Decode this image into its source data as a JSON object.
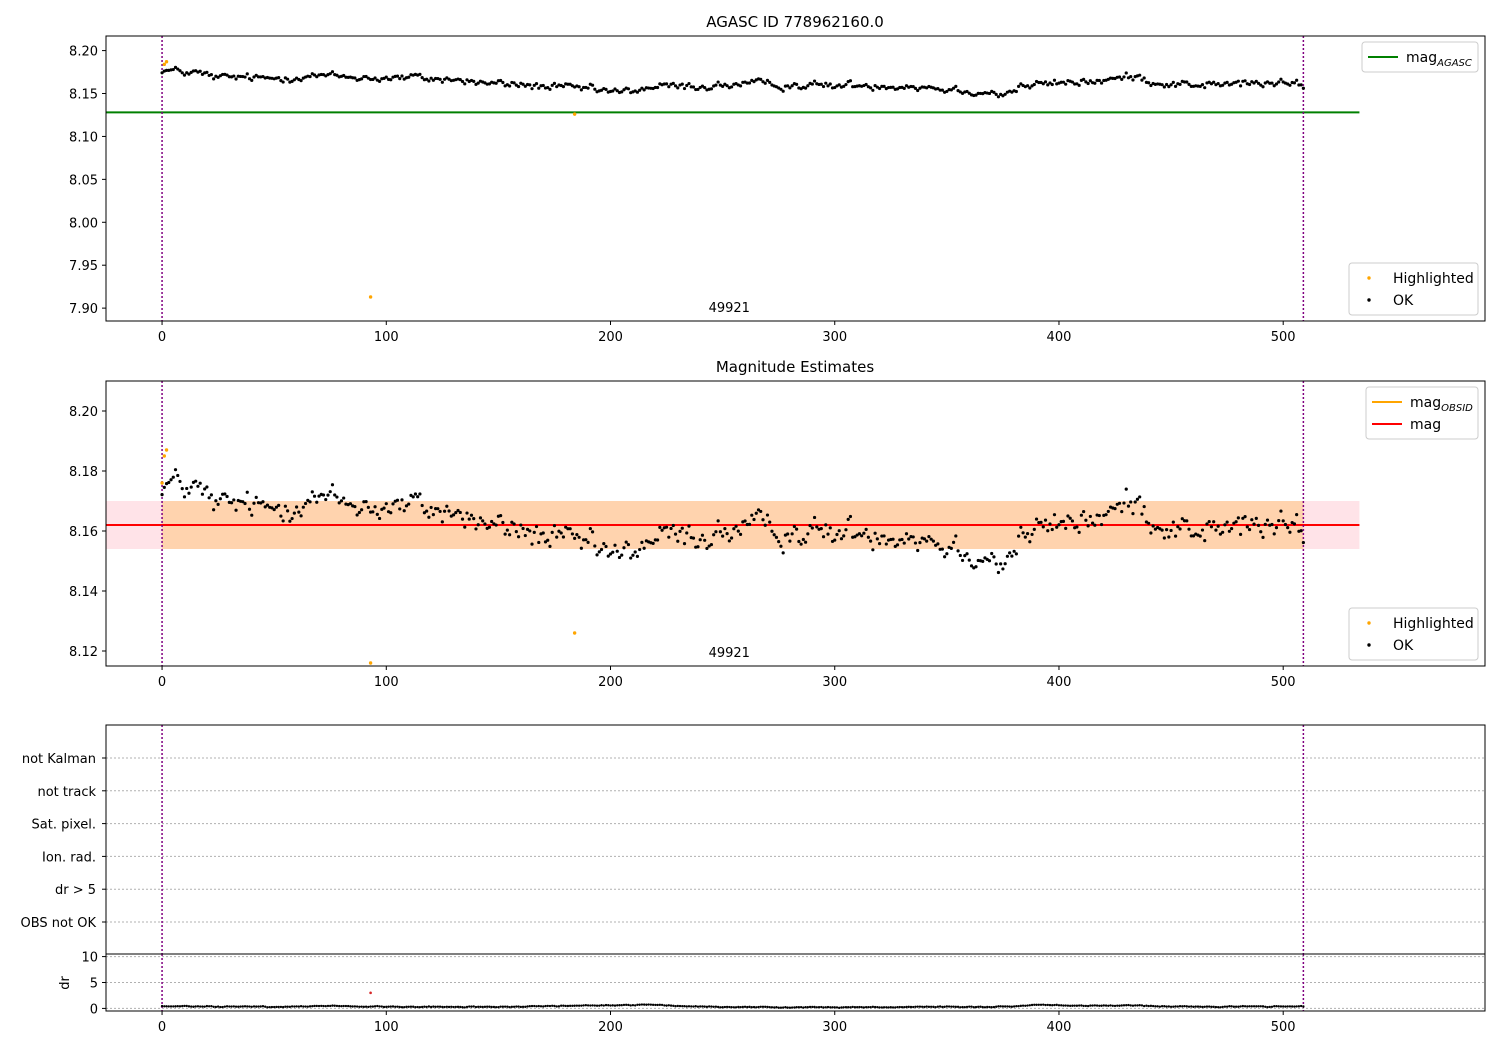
{
  "chart_data": [
    {
      "type": "scatter",
      "title": "AGASC ID 778962160.0",
      "xlim": [
        -25,
        590
      ],
      "ylim": [
        7.885,
        8.217
      ],
      "x_ticks": [
        0,
        100,
        200,
        300,
        400,
        500
      ],
      "y_ticks": [
        7.9,
        7.95,
        8.0,
        8.05,
        8.1,
        8.15,
        8.2
      ],
      "y_tick_labels": [
        "7.90",
        "7.95",
        "8.00",
        "8.05",
        "8.10",
        "8.15",
        "8.20"
      ],
      "obsid_annotation": {
        "x": 254,
        "text": "49921"
      },
      "vlines": [
        0,
        509
      ],
      "vline_color": "#800080",
      "lines": [
        {
          "name": "mag_AGASC",
          "label_main": "mag",
          "label_sub": "AGASC",
          "y": 8.128,
          "x_range": [
            -25,
            534
          ],
          "color": "#008000"
        }
      ],
      "series": [
        {
          "name": "Highlighted",
          "color": "#FFA500",
          "points": [
            [
              1,
              8.184
            ],
            [
              2,
              8.187
            ],
            [
              93,
              7.913
            ],
            [
              184,
              8.126
            ]
          ]
        },
        {
          "name": "OK",
          "color": "#000000",
          "trend": [
            [
              0,
              8.178
            ],
            [
              5,
              8.176
            ],
            [
              15,
              8.174
            ],
            [
              25,
              8.168
            ],
            [
              35,
              8.169
            ],
            [
              45,
              8.167
            ],
            [
              55,
              8.169
            ],
            [
              65,
              8.171
            ],
            [
              75,
              8.17
            ],
            [
              85,
              8.169
            ],
            [
              100,
              8.168
            ],
            [
              115,
              8.168
            ],
            [
              130,
              8.166
            ],
            [
              145,
              8.162
            ],
            [
              160,
              8.16
            ],
            [
              175,
              8.157
            ],
            [
              190,
              8.155
            ],
            [
              205,
              8.151
            ],
            [
              220,
              8.158
            ],
            [
              240,
              8.158
            ],
            [
              260,
              8.161
            ],
            [
              280,
              8.16
            ],
            [
              300,
              8.159
            ],
            [
              320,
              8.16
            ],
            [
              340,
              8.158
            ],
            [
              355,
              8.154
            ],
            [
              365,
              8.153
            ],
            [
              375,
              8.149
            ],
            [
              385,
              8.159
            ],
            [
              400,
              8.162
            ],
            [
              420,
              8.165
            ],
            [
              435,
              8.17
            ],
            [
              445,
              8.162
            ],
            [
              455,
              8.161
            ],
            [
              470,
              8.16
            ],
            [
              485,
              8.162
            ],
            [
              500,
              8.161
            ],
            [
              509,
              8.16
            ]
          ],
          "noise": 0.0042,
          "n_points": 510
        }
      ],
      "legends": [
        {
          "position": "top-right",
          "items": [
            {
              "label_main": "mag",
              "label_sub": "AGASC",
              "kind": "line",
              "color": "#008000"
            }
          ]
        },
        {
          "position": "bottom-right",
          "items": [
            {
              "label": "Highlighted",
              "kind": "marker",
              "color": "#FFA500"
            },
            {
              "label": "OK",
              "kind": "marker",
              "color": "#000000"
            }
          ]
        }
      ]
    },
    {
      "type": "scatter",
      "title": "Magnitude Estimates",
      "xlim": [
        -25,
        590
      ],
      "ylim": [
        8.115,
        8.21
      ],
      "x_ticks": [
        0,
        100,
        200,
        300,
        400,
        500
      ],
      "y_ticks": [
        8.12,
        8.14,
        8.16,
        8.18,
        8.2
      ],
      "y_tick_labels": [
        "8.12",
        "8.14",
        "8.16",
        "8.18",
        "8.20"
      ],
      "obsid_annotation": {
        "x": 254,
        "text": "49921"
      },
      "vlines": [
        0,
        509
      ],
      "vline_color": "#800080",
      "bands": [
        {
          "name": "mag_band",
          "x_range": [
            -25,
            534
          ],
          "y_range": [
            8.154,
            8.17
          ],
          "color": "#FFC0CB",
          "opacity": 0.45
        },
        {
          "name": "mag_obsid_band",
          "x_range": [
            0,
            509
          ],
          "y_range": [
            8.154,
            8.17
          ],
          "color": "#FFA500",
          "opacity": 0.25
        }
      ],
      "lines": [
        {
          "name": "mag_OBSID",
          "label_main": "mag",
          "label_sub": "OBSID",
          "y": 8.162,
          "x_range": [
            0,
            509
          ],
          "color": "#FFA500"
        },
        {
          "name": "mag",
          "label_main": "mag",
          "y": 8.162,
          "x_range": [
            -25,
            534
          ],
          "color": "#FF0000"
        }
      ],
      "series": [
        {
          "name": "Highlighted",
          "color": "#FFA500",
          "points": [
            [
              0,
              8.176
            ],
            [
              1,
              8.185
            ],
            [
              2,
              8.187
            ],
            [
              93,
              8.116
            ],
            [
              184,
              8.126
            ]
          ]
        },
        {
          "name": "OK",
          "color": "#000000",
          "trend": [
            [
              0,
              8.176
            ],
            [
              5,
              8.176
            ],
            [
              15,
              8.174
            ],
            [
              25,
              8.168
            ],
            [
              35,
              8.169
            ],
            [
              45,
              8.167
            ],
            [
              55,
              8.169
            ],
            [
              65,
              8.171
            ],
            [
              75,
              8.17
            ],
            [
              85,
              8.169
            ],
            [
              100,
              8.168
            ],
            [
              115,
              8.168
            ],
            [
              130,
              8.166
            ],
            [
              145,
              8.162
            ],
            [
              160,
              8.16
            ],
            [
              175,
              8.157
            ],
            [
              190,
              8.155
            ],
            [
              205,
              8.151
            ],
            [
              220,
              8.158
            ],
            [
              240,
              8.158
            ],
            [
              260,
              8.161
            ],
            [
              280,
              8.16
            ],
            [
              300,
              8.159
            ],
            [
              320,
              8.16
            ],
            [
              340,
              8.158
            ],
            [
              355,
              8.154
            ],
            [
              365,
              8.153
            ],
            [
              375,
              8.149
            ],
            [
              385,
              8.159
            ],
            [
              400,
              8.162
            ],
            [
              420,
              8.165
            ],
            [
              435,
              8.17
            ],
            [
              445,
              8.162
            ],
            [
              455,
              8.161
            ],
            [
              470,
              8.16
            ],
            [
              485,
              8.162
            ],
            [
              500,
              8.161
            ],
            [
              509,
              8.16
            ]
          ],
          "noise": 0.0042,
          "n_points": 510
        }
      ],
      "legends": [
        {
          "position": "top-right",
          "items": [
            {
              "label_main": "mag",
              "label_sub": "OBSID",
              "kind": "line",
              "color": "#FFA500"
            },
            {
              "label": "mag",
              "kind": "line",
              "color": "#FF0000"
            }
          ]
        },
        {
          "position": "bottom-right",
          "items": [
            {
              "label": "Highlighted",
              "kind": "marker",
              "color": "#FFA500"
            },
            {
              "label": "OK",
              "kind": "marker",
              "color": "#000000"
            }
          ]
        }
      ]
    },
    {
      "type": "table",
      "xlim": [
        -25,
        590
      ],
      "categories": [
        "not Kalman",
        "not track",
        "Sat. pixel.",
        "Ion. rad.",
        "dr > 5",
        "OBS not OK"
      ],
      "grid": "dotted",
      "vlines": [
        0,
        509
      ],
      "vline_color": "#800080",
      "flags": []
    },
    {
      "type": "scatter",
      "xlim": [
        -25,
        590
      ],
      "ylim": [
        -0.5,
        10.5
      ],
      "ylabel": "dr",
      "y_ticks": [
        0,
        5,
        10
      ],
      "x_ticks": [
        0,
        100,
        200,
        300,
        400,
        500
      ],
      "grid": "dotted",
      "vlines": [
        0,
        509
      ],
      "vline_color": "#800080",
      "series": [
        {
          "name": "dr",
          "color": "#000000",
          "trend": [
            [
              0,
              0.4
            ],
            [
              50,
              0.3
            ],
            [
              75,
              0.5
            ],
            [
              100,
              0.3
            ],
            [
              150,
              0.3
            ],
            [
              200,
              0.6
            ],
            [
              215,
              0.7
            ],
            [
              240,
              0.3
            ],
            [
              300,
              0.2
            ],
            [
              340,
              0.3
            ],
            [
              380,
              0.3
            ],
            [
              390,
              0.7
            ],
            [
              410,
              0.5
            ],
            [
              430,
              0.6
            ],
            [
              450,
              0.3
            ],
            [
              500,
              0.4
            ],
            [
              509,
              0.4
            ]
          ],
          "noise": 0.08,
          "n_points": 510
        },
        {
          "name": "Highlighted",
          "color": "#D62728",
          "points": [
            [
              93,
              3.0
            ]
          ]
        }
      ]
    }
  ]
}
